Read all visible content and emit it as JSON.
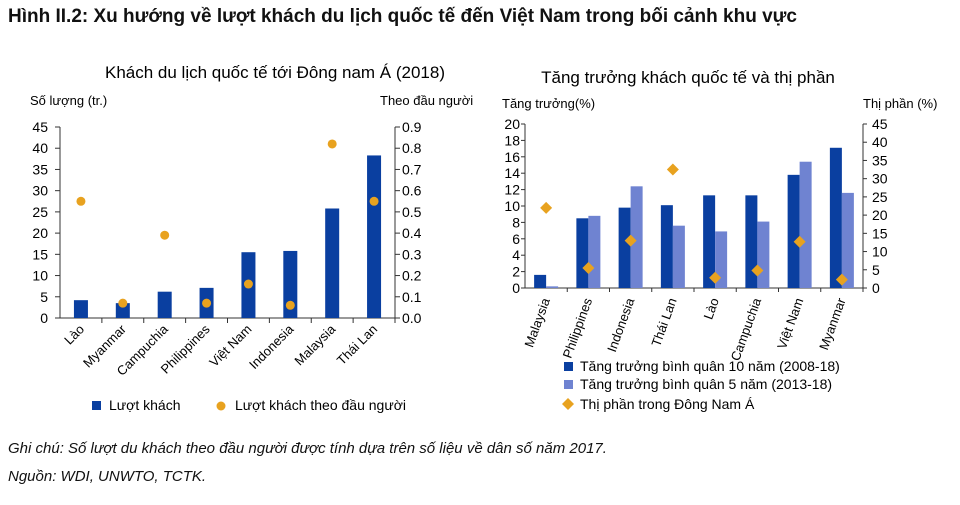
{
  "figure_title": "Hình II.2: Xu hướng về lượt khách du lịch quốc tế đến Việt Nam trong bối cảnh khu vực",
  "note": "Ghi chú: Số lượt du khách theo đầu người được tính dựa trên số liệu về dân số năm 2017.",
  "source": "Nguồn: WDI, UNWTO, TCTK.",
  "colors": {
    "bar_dark": "#0a3fa0",
    "bar_light": "#6f83d1",
    "dot": "#e8a21f"
  },
  "chart_data": [
    {
      "type": "bar",
      "title": "Khách du lịch quốc tế tới Đông nam Á (2018)",
      "ylabel_left": "Số lượng (tr.)",
      "ylabel_right": "Theo đầu người",
      "ylim_left": [
        0,
        45
      ],
      "ylim_right": [
        0,
        0.9
      ],
      "yticks_left": [
        "0",
        "5",
        "10",
        "15",
        "20",
        "25",
        "30",
        "35",
        "40",
        "45"
      ],
      "yticks_right": [
        "0.0",
        "0.1",
        "0.2",
        "0.3",
        "0.4",
        "0.5",
        "0.6",
        "0.7",
        "0.8",
        "0.9"
      ],
      "categories": [
        "Lào",
        "Myanmar",
        "Campuchia",
        "Philippines",
        "Việt Nam",
        "Indonesia",
        "Malaysia",
        "Thái Lan"
      ],
      "series": [
        {
          "name": "Lượt khách",
          "type": "bar",
          "axis": "left",
          "values": [
            4.2,
            3.5,
            6.2,
            7.1,
            15.5,
            15.8,
            25.8,
            38.3
          ]
        },
        {
          "name": "Lượt khách theo đầu người",
          "type": "scatter",
          "axis": "right",
          "values": [
            0.55,
            0.07,
            0.39,
            0.07,
            0.16,
            0.06,
            0.82,
            0.55
          ]
        }
      ],
      "legend_position": "bottom"
    },
    {
      "type": "bar",
      "title": "Tăng trưởng khách quốc tế và thị phần",
      "ylabel_left": "Tăng trưởng(%)",
      "ylabel_right": "Thị phần (%)",
      "ylim_left": [
        0,
        20
      ],
      "ylim_right": [
        0,
        45
      ],
      "yticks_left": [
        "0",
        "2",
        "4",
        "6",
        "8",
        "10",
        "12",
        "14",
        "16",
        "18",
        "20"
      ],
      "yticks_right": [
        "0",
        "5",
        "10",
        "15",
        "20",
        "25",
        "30",
        "35",
        "40",
        "45"
      ],
      "categories": [
        "Malaysia",
        "Philippines",
        "Indonesia",
        "Thái Lan",
        "Lào",
        "Campuchia",
        "Việt Nam",
        "Myanmar"
      ],
      "series": [
        {
          "name": "Tăng trưởng bình quân 10 năm (2008-18)",
          "type": "bar",
          "axis": "left",
          "values": [
            1.6,
            8.5,
            9.8,
            10.1,
            11.3,
            11.3,
            13.8,
            17.1
          ]
        },
        {
          "name": "Tăng trưởng bình quân 5 năm (2013-18)",
          "type": "bar",
          "axis": "left",
          "values": [
            0.2,
            8.8,
            12.4,
            7.6,
            6.9,
            8.1,
            15.4,
            11.6
          ]
        },
        {
          "name": "Thị phần trong Đông Nam Á",
          "type": "scatter",
          "axis": "right",
          "values": [
            22,
            5.5,
            13,
            32.5,
            2.8,
            4.8,
            12.7,
            2.3
          ]
        }
      ],
      "legend_position": "bottom"
    }
  ]
}
